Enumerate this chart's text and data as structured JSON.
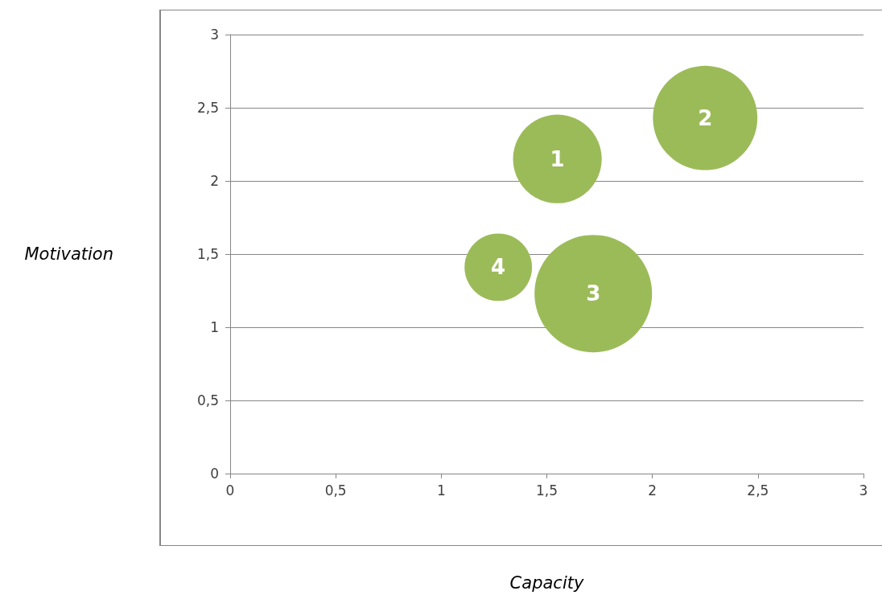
{
  "chart_data": {
    "type": "bubble",
    "xlabel": "Capacity",
    "ylabel": "Motivation",
    "series": [
      {
        "name": "1",
        "color": "#9bbb59",
        "x": [
          1.55
        ],
        "values": [
          2.15
        ],
        "sizes": [
          0.57
        ]
      },
      {
        "name": "2",
        "color": "#9bbb59",
        "x": [
          2.25
        ],
        "values": [
          2.43
        ],
        "sizes": [
          0.79
        ]
      },
      {
        "name": "3",
        "color": "#9bbb59",
        "x": [
          1.72
        ],
        "values": [
          1.23
        ],
        "sizes": [
          1
        ]
      },
      {
        "name": "4",
        "color": "#9bbb59",
        "x": [
          1.27
        ],
        "values": [
          1.41
        ],
        "sizes": [
          0.33
        ]
      }
    ],
    "xlim": [
      0,
      3
    ],
    "xticks": [
      0,
      {
        "value": 0.5,
        "label": "0,5"
      },
      1,
      {
        "value": 1.5,
        "label": "1,5"
      },
      2,
      {
        "value": 2.5,
        "label": "2,5"
      },
      3
    ],
    "ylim": [
      0,
      3
    ],
    "yticks": [
      0,
      {
        "value": 0.5,
        "label": "0,5"
      },
      1,
      {
        "value": 1.5,
        "label": "1,5"
      },
      2,
      {
        "value": 2.5,
        "label": "2,5"
      },
      3
    ],
    "grid": "y"
  }
}
